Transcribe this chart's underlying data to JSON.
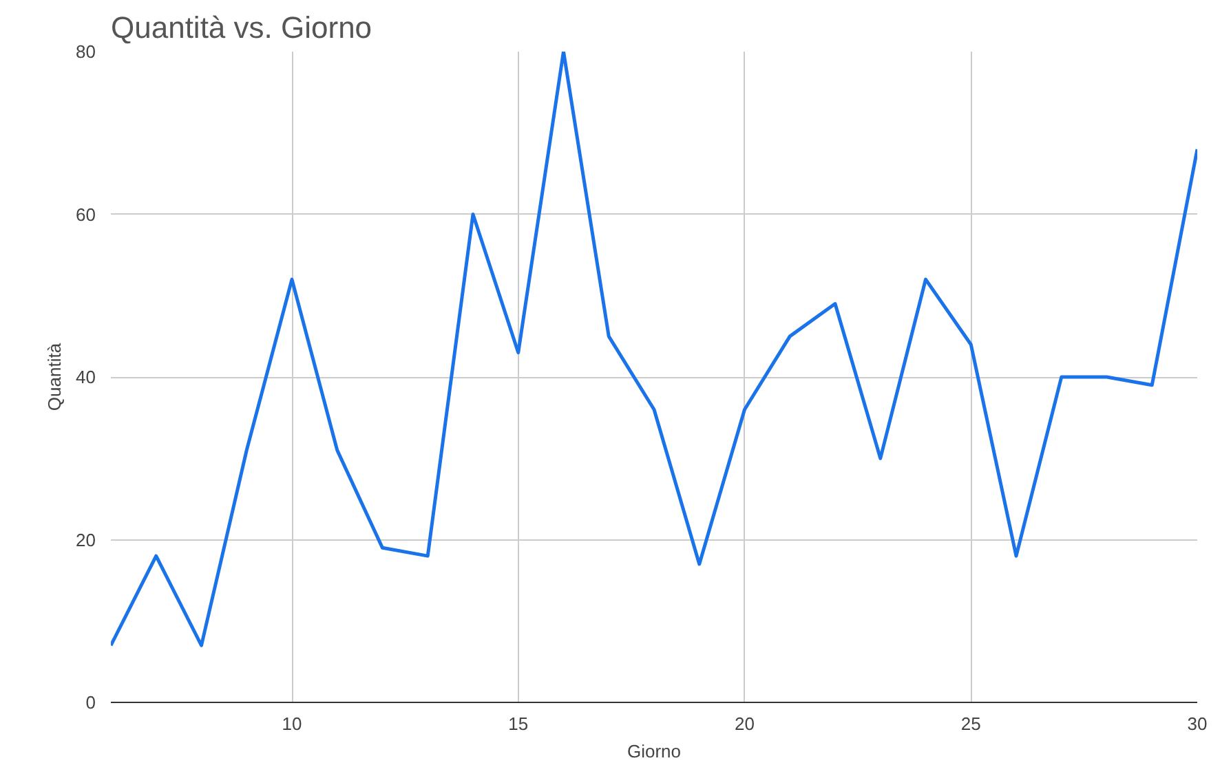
{
  "chart_data": {
    "type": "line",
    "title": "Quantità vs. Giorno",
    "xlabel": "Giorno",
    "ylabel": "Quantità",
    "x": [
      6,
      7,
      8,
      9,
      10,
      11,
      12,
      13,
      14,
      15,
      16,
      17,
      18,
      19,
      20,
      21,
      22,
      23,
      24,
      25,
      26,
      27,
      28,
      29,
      30
    ],
    "series": [
      {
        "color": "#1a73e8",
        "values": [
          7,
          18,
          7,
          31,
          52,
          31,
          19,
          18,
          60,
          43,
          80,
          45,
          36,
          17,
          36,
          45,
          49,
          30,
          52,
          44,
          18,
          40,
          40,
          39,
          68
        ]
      }
    ],
    "xlim": [
      6,
      30
    ],
    "xticks": [
      10,
      15,
      20,
      25,
      30
    ],
    "ylim": [
      0,
      80
    ],
    "yticks": [
      0,
      20,
      40,
      60,
      80
    ],
    "grid": true,
    "marker": "none",
    "line_style": "solid"
  }
}
